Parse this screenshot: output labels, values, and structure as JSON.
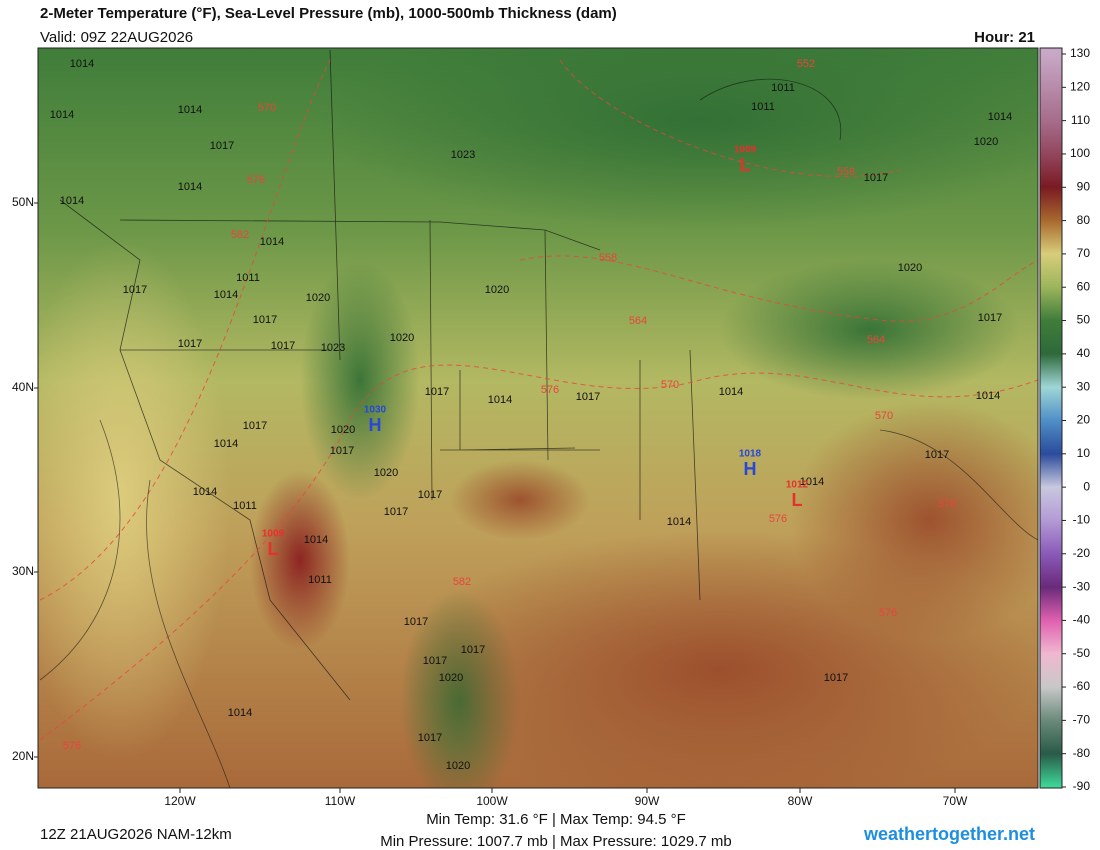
{
  "header": {
    "title": "2-Meter Temperature (°F), Sea-Level Pressure (mb), 1000-500mb Thickness (dam)",
    "valid": "Valid: 09Z 22AUG2026",
    "hour": "Hour: 21"
  },
  "map": {
    "longitude_labels": [
      "120W",
      "110W",
      "100W",
      "90W",
      "80W",
      "70W"
    ],
    "latitude_labels": [
      "50N",
      "40N",
      "30N",
      "20N"
    ],
    "pressure_labels": [
      1014,
      1014,
      1014,
      1017,
      1023,
      1011,
      1011,
      1014,
      1014,
      1014,
      1011,
      1014,
      1017,
      1020,
      1017,
      1020,
      1017,
      1017,
      1023,
      1020,
      1017,
      1014,
      1017,
      1014,
      1020,
      1017,
      1014,
      1017,
      1020,
      1017,
      1017,
      1014,
      1011,
      1014,
      1011,
      1014,
      1014,
      1017,
      1014,
      1017,
      1020,
      1017,
      1020,
      1017,
      1017,
      1017,
      1020,
      1017,
      1020,
      1017,
      1014,
      1014
    ],
    "thickness_labels": [
      570,
      576,
      582,
      558,
      564,
      576,
      570,
      564,
      570,
      576,
      576,
      582,
      576,
      558,
      552,
      576
    ],
    "pressure_centers": [
      {
        "letter": "H",
        "value": 1030,
        "color": "#2846d8"
      },
      {
        "letter": "H",
        "value": 1018,
        "color": "#2846d8"
      },
      {
        "letter": "L",
        "value": 1009,
        "color": "#e8302a"
      },
      {
        "letter": "L",
        "value": 1012,
        "color": "#e8302a"
      },
      {
        "letter": "L",
        "value": 1009,
        "color": "#e8302a"
      }
    ]
  },
  "colorbar": {
    "ticks": [
      130,
      120,
      110,
      100,
      90,
      80,
      70,
      60,
      50,
      40,
      30,
      20,
      10,
      0,
      -10,
      -20,
      -30,
      -40,
      -50,
      -60,
      -70,
      -80,
      -90
    ],
    "colors": [
      "#c8a8c6",
      "#b78ba9",
      "#a66d8b",
      "#94465e",
      "#7a1a22",
      "#a8692e",
      "#d8cd7a",
      "#9cb55c",
      "#3f7d3a",
      "#2e6a3a",
      "#9fd6d6",
      "#4f8fc7",
      "#2b4b9c",
      "#c8c8de",
      "#b49ad6",
      "#8a5ab8",
      "#6a2a7a",
      "#e060b0",
      "#f0b8d0",
      "#c8c8c8",
      "#6a8a7a",
      "#2a5a48",
      "#3ed898"
    ]
  },
  "footer": {
    "run": "12Z 21AUG2026 NAM-12km",
    "temp_stats": "Min Temp:  31.6 °F | Max Temp:  94.5 °F",
    "pressure_stats": "Min Pressure: 1007.7 mb | Max Pressure: 1029.7 mb",
    "site": "weathertogether.net"
  }
}
